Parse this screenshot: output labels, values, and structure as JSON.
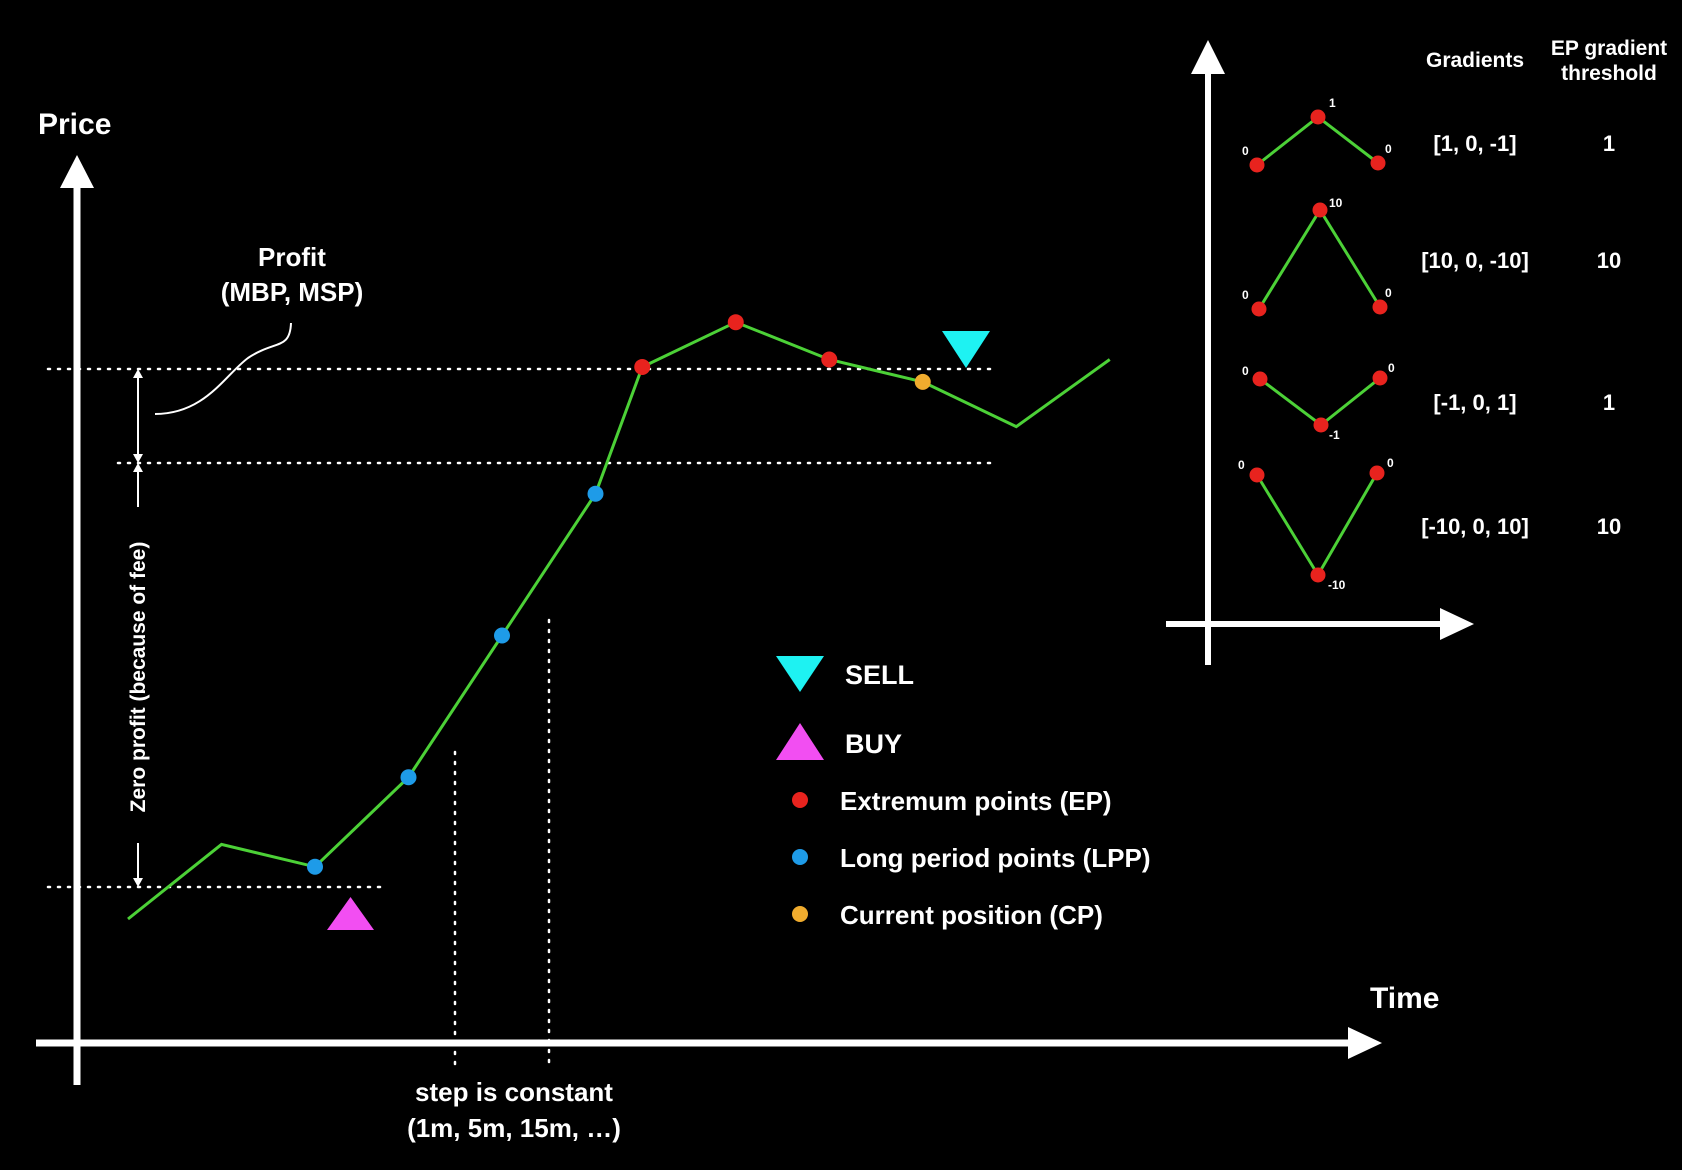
{
  "colors": {
    "background": "#000000",
    "axis": "#ffffff",
    "price_line": "#4cd137",
    "extremum_point": "#e8231e",
    "long_period_point": "#1e9be8",
    "current_position": "#f0ac2e",
    "sell_marker": "#1ef2f2",
    "buy_marker": "#f24ef2"
  },
  "main_chart": {
    "y_label": "Price",
    "x_label": "Time",
    "profit_label": {
      "line1": "Profit",
      "line2": "(MBP, MSP)"
    },
    "zero_profit_label": "Zero profit (because of fee)",
    "step_label": {
      "line1": "step is constant",
      "line2": "(1m, 5m, 15m, …)"
    },
    "price_series": [
      {
        "t": 0,
        "p": 0
      },
      {
        "t": 1,
        "p": 1
      },
      {
        "t": 2,
        "p": 0.7,
        "kind": "LPP"
      },
      {
        "t": 3,
        "p": 1.9,
        "kind": "LPP"
      },
      {
        "t": 4,
        "p": 3.8,
        "kind": "LPP"
      },
      {
        "t": 5,
        "p": 5.7,
        "kind": "LPP"
      },
      {
        "t": 5.5,
        "p": 7.4,
        "kind": "EP"
      },
      {
        "t": 6.5,
        "p": 8.0,
        "kind": "EP"
      },
      {
        "t": 7.5,
        "p": 7.5,
        "kind": "EP"
      },
      {
        "t": 8.5,
        "p": 7.2,
        "kind": "CP"
      },
      {
        "t": 9.5,
        "p": 6.6
      },
      {
        "t": 10.5,
        "p": 7.5
      }
    ]
  },
  "legend": [
    {
      "marker": "sell-triangle",
      "label": "SELL"
    },
    {
      "marker": "buy-triangle",
      "label": "BUY"
    },
    {
      "marker": "extremum-dot",
      "label": "Extremum points (EP)"
    },
    {
      "marker": "long-period-dot",
      "label": "Long period points (LPP)"
    },
    {
      "marker": "current-position-dot",
      "label": "Current position (CP)"
    }
  ],
  "gradient_table": {
    "headers": {
      "gradients": "Gradients",
      "threshold_line1": "EP gradient",
      "threshold_line2": "threshold"
    },
    "rows": [
      {
        "gradients": "[1, 0, -1]",
        "threshold": "1",
        "point_labels": [
          "0",
          "1",
          "0"
        ]
      },
      {
        "gradients": "[10, 0, -10]",
        "threshold": "10",
        "point_labels": [
          "0",
          "10",
          "0"
        ]
      },
      {
        "gradients": "[-1, 0, 1]",
        "threshold": "1",
        "point_labels": [
          "0",
          "-1",
          "0"
        ]
      },
      {
        "gradients": "[-10, 0, 10]",
        "threshold": "10",
        "point_labels": [
          "0",
          "-10",
          "0"
        ]
      }
    ]
  }
}
